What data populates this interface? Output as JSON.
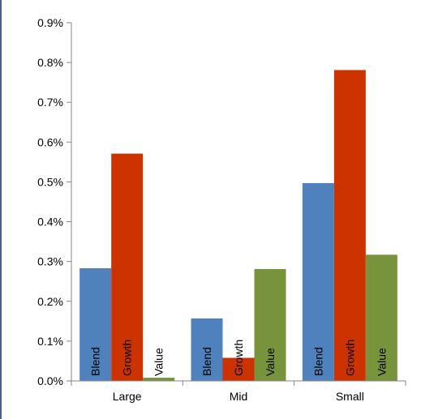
{
  "chart_data": {
    "type": "bar",
    "title": "",
    "xlabel": "",
    "ylabel": "",
    "categories": [
      "Large",
      "Mid",
      "Small"
    ],
    "series": [
      {
        "name": "Blend",
        "color": "#4f81bd",
        "values": [
          0.283,
          0.157,
          0.497
        ]
      },
      {
        "name": "Growth",
        "color": "#cc3300",
        "values": [
          0.571,
          0.058,
          0.781
        ]
      },
      {
        "name": "Value",
        "color": "#77933c",
        "values": [
          0.008,
          0.281,
          0.317
        ]
      }
    ],
    "ylim": [
      0,
      0.9
    ],
    "y_ticks": [
      "0.0%",
      "0.1%",
      "0.2%",
      "0.3%",
      "0.4%",
      "0.5%",
      "0.6%",
      "0.7%",
      "0.8%",
      "0.9%"
    ],
    "grid": false,
    "legend": "none",
    "bar_labels": "rotated inside bars"
  }
}
